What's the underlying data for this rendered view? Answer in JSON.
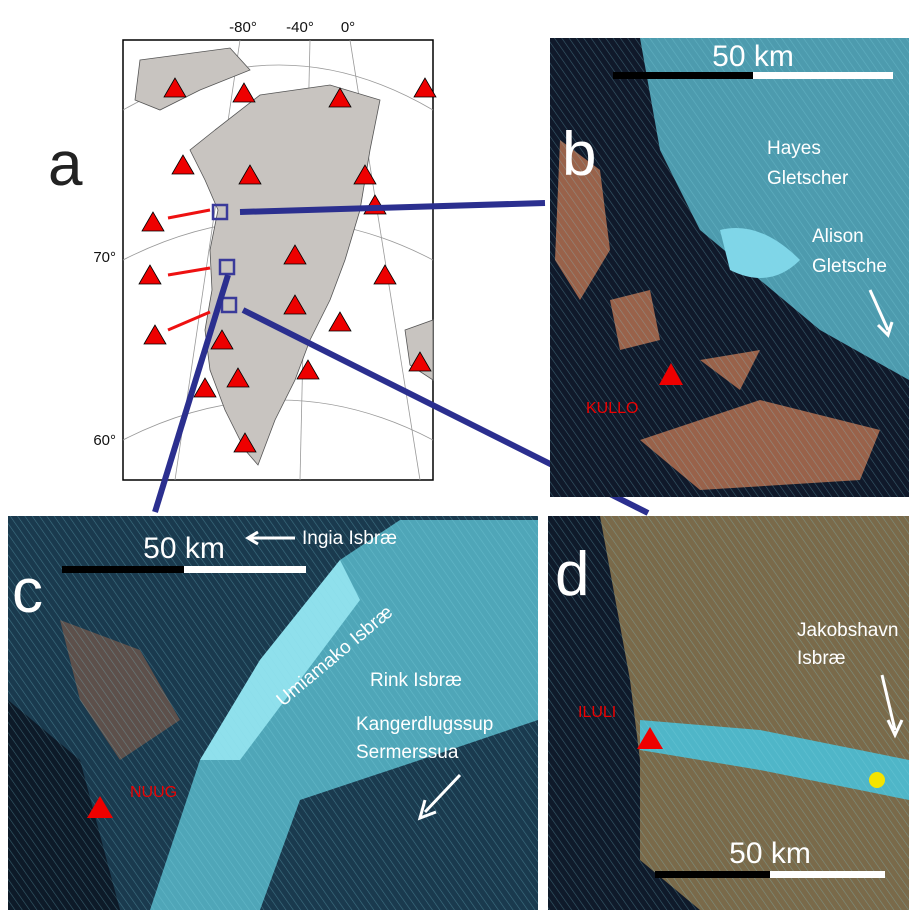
{
  "panel_a": {
    "label": "a",
    "lon_labels": [
      "-80°",
      "-40°",
      "0°"
    ],
    "lat_labels": [
      "70°",
      "60°"
    ]
  },
  "panel_b": {
    "label": "b",
    "scale": "50 km",
    "station": "KULLO",
    "glaciers": [
      [
        "Hayes",
        "Gletscher"
      ],
      [
        "Alison",
        "Gletsche"
      ]
    ]
  },
  "panel_c": {
    "label": "c",
    "scale": "50 km",
    "station": "NUUG",
    "glaciers": [
      [
        "Ingia Isbræ"
      ],
      [
        "Umiamako Isbræ"
      ],
      [
        "Rink Isbræ"
      ],
      [
        "Kangerdlugssup",
        "Sermerssua"
      ]
    ]
  },
  "panel_d": {
    "label": "d",
    "scale": "50 km",
    "station": "ILULI",
    "glaciers": [
      [
        "Jakobshavn",
        "Isbræ"
      ]
    ]
  }
}
